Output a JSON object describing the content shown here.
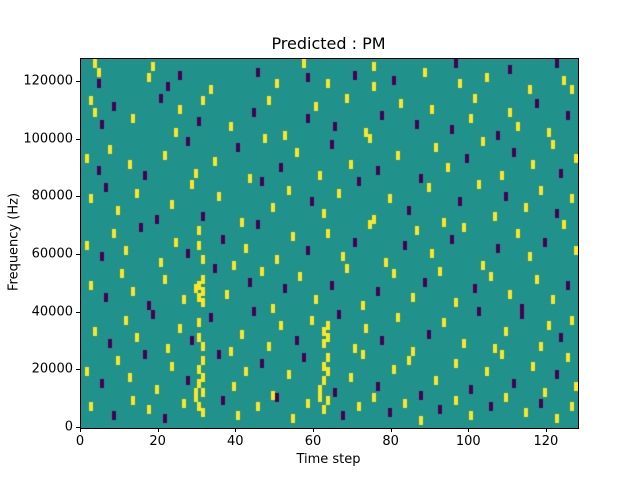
{
  "figure": {
    "background": "#ffffff"
  },
  "chart_data": {
    "type": "heatmap",
    "title": "Predicted : PM",
    "xlabel": "Time step",
    "ylabel": "Frequency (Hz)",
    "xlim": [
      0,
      128
    ],
    "ylim": [
      0,
      128000
    ],
    "xticks": [
      0,
      20,
      40,
      60,
      80,
      100,
      120
    ],
    "yticks": [
      0,
      20000,
      40000,
      60000,
      80000,
      100000,
      120000
    ],
    "grid": false,
    "legend": "none",
    "colors": {
      "low": "#440154",
      "mid": "#21918c",
      "high": "#fde725"
    },
    "value_meaning": {
      "low": 0,
      "mid": "background",
      "high": 1
    },
    "cell_size": {
      "time_steps": 1,
      "freq_hz": 3000
    },
    "cells_format": "[time_step, frequency_kHz, value(1=yellow-high, 0=purple-low)]",
    "cells": [
      [
        3,
        125,
        1
      ],
      [
        4,
        122,
        1
      ],
      [
        4,
        118,
        0
      ],
      [
        17,
        120,
        1
      ],
      [
        18,
        124,
        1
      ],
      [
        22,
        117,
        0
      ],
      [
        25,
        121,
        0
      ],
      [
        33,
        116,
        1
      ],
      [
        45,
        122,
        0
      ],
      [
        50,
        118,
        1
      ],
      [
        57,
        125,
        1
      ],
      [
        58,
        120,
        0
      ],
      [
        63,
        118,
        1
      ],
      [
        70,
        121,
        0
      ],
      [
        75,
        124,
        1
      ],
      [
        75,
        117,
        1
      ],
      [
        80,
        119,
        0
      ],
      [
        88,
        122,
        1
      ],
      [
        96,
        125,
        0
      ],
      [
        97,
        118,
        1
      ],
      [
        104,
        120,
        1
      ],
      [
        110,
        123,
        0
      ],
      [
        115,
        116,
        1
      ],
      [
        122,
        125,
        0
      ],
      [
        124,
        119,
        1
      ],
      [
        126,
        116,
        1
      ],
      [
        2,
        112,
        1
      ],
      [
        3,
        108,
        1
      ],
      [
        5,
        104,
        0
      ],
      [
        8,
        110,
        0
      ],
      [
        13,
        106,
        1
      ],
      [
        20,
        113,
        0
      ],
      [
        24,
        101,
        1
      ],
      [
        25,
        109,
        1
      ],
      [
        30,
        105,
        0
      ],
      [
        31,
        112,
        1
      ],
      [
        38,
        103,
        1
      ],
      [
        44,
        108,
        0
      ],
      [
        48,
        112,
        1
      ],
      [
        52,
        100,
        1
      ],
      [
        58,
        106,
        0
      ],
      [
        60,
        110,
        1
      ],
      [
        65,
        103,
        0
      ],
      [
        68,
        113,
        1
      ],
      [
        73,
        101,
        1
      ],
      [
        77,
        107,
        0
      ],
      [
        82,
        111,
        1
      ],
      [
        86,
        104,
        0
      ],
      [
        90,
        109,
        1
      ],
      [
        95,
        102,
        0
      ],
      [
        100,
        106,
        1
      ],
      [
        101,
        113,
        1
      ],
      [
        107,
        100,
        0
      ],
      [
        110,
        108,
        1
      ],
      [
        112,
        103,
        1
      ],
      [
        117,
        111,
        0
      ],
      [
        120,
        101,
        1
      ],
      [
        125,
        107,
        0
      ],
      [
        1,
        92,
        1
      ],
      [
        4,
        88,
        0
      ],
      [
        7,
        95,
        1
      ],
      [
        12,
        90,
        1
      ],
      [
        16,
        86,
        0
      ],
      [
        21,
        93,
        1
      ],
      [
        27,
        98,
        0
      ],
      [
        29,
        87,
        1
      ],
      [
        34,
        91,
        1
      ],
      [
        40,
        96,
        0
      ],
      [
        43,
        85,
        1
      ],
      [
        47,
        99,
        1
      ],
      [
        51,
        89,
        0
      ],
      [
        55,
        94,
        1
      ],
      [
        61,
        86,
        1
      ],
      [
        64,
        97,
        0
      ],
      [
        69,
        90,
        1
      ],
      [
        74,
        99,
        1
      ],
      [
        76,
        88,
        0
      ],
      [
        81,
        93,
        1
      ],
      [
        87,
        85,
        0
      ],
      [
        91,
        96,
        1
      ],
      [
        94,
        89,
        1
      ],
      [
        99,
        92,
        0
      ],
      [
        103,
        98,
        1
      ],
      [
        108,
        86,
        1
      ],
      [
        111,
        94,
        0
      ],
      [
        116,
        90,
        1
      ],
      [
        121,
        97,
        1
      ],
      [
        123,
        87,
        0
      ],
      [
        127,
        92,
        1
      ],
      [
        2,
        78,
        1
      ],
      [
        6,
        82,
        0
      ],
      [
        9,
        74,
        1
      ],
      [
        14,
        80,
        1
      ],
      [
        19,
        71,
        0
      ],
      [
        23,
        76,
        1
      ],
      [
        28,
        83,
        1
      ],
      [
        31,
        72,
        0
      ],
      [
        35,
        79,
        1
      ],
      [
        41,
        70,
        1
      ],
      [
        46,
        84,
        0
      ],
      [
        49,
        75,
        1
      ],
      [
        53,
        81,
        1
      ],
      [
        59,
        77,
        0
      ],
      [
        62,
        73,
        1
      ],
      [
        66,
        80,
        1
      ],
      [
        71,
        84,
        0
      ],
      [
        75,
        71,
        1
      ],
      [
        79,
        78,
        1
      ],
      [
        84,
        74,
        0
      ],
      [
        89,
        82,
        1
      ],
      [
        93,
        70,
        1
      ],
      [
        97,
        77,
        0
      ],
      [
        102,
        83,
        1
      ],
      [
        106,
        72,
        1
      ],
      [
        109,
        79,
        0
      ],
      [
        114,
        75,
        1
      ],
      [
        118,
        81,
        1
      ],
      [
        122,
        73,
        0
      ],
      [
        126,
        78,
        1
      ],
      [
        1,
        62,
        1
      ],
      [
        5,
        58,
        0
      ],
      [
        8,
        66,
        1
      ],
      [
        11,
        60,
        1
      ],
      [
        15,
        68,
        0
      ],
      [
        20,
        56,
        1
      ],
      [
        24,
        63,
        1
      ],
      [
        27,
        59,
        0
      ],
      [
        30,
        67,
        1
      ],
      [
        30,
        62,
        1
      ],
      [
        31,
        57,
        1
      ],
      [
        36,
        64,
        0
      ],
      [
        39,
        55,
        1
      ],
      [
        42,
        61,
        1
      ],
      [
        45,
        69,
        0
      ],
      [
        50,
        57,
        1
      ],
      [
        54,
        65,
        1
      ],
      [
        58,
        60,
        0
      ],
      [
        63,
        66,
        1
      ],
      [
        67,
        58,
        1
      ],
      [
        70,
        63,
        0
      ],
      [
        74,
        69,
        1
      ],
      [
        78,
        56,
        1
      ],
      [
        83,
        62,
        0
      ],
      [
        86,
        67,
        1
      ],
      [
        90,
        59,
        1
      ],
      [
        95,
        64,
        0
      ],
      [
        98,
        68,
        1
      ],
      [
        103,
        55,
        1
      ],
      [
        107,
        61,
        0
      ],
      [
        112,
        66,
        1
      ],
      [
        115,
        58,
        1
      ],
      [
        119,
        63,
        0
      ],
      [
        124,
        69,
        1
      ],
      [
        127,
        60,
        1
      ],
      [
        2,
        48,
        1
      ],
      [
        6,
        44,
        0
      ],
      [
        10,
        52,
        1
      ],
      [
        13,
        46,
        1
      ],
      [
        17,
        41,
        0
      ],
      [
        21,
        50,
        1
      ],
      [
        26,
        43,
        1
      ],
      [
        29,
        47,
        1
      ],
      [
        30,
        44,
        1
      ],
      [
        30,
        48,
        1
      ],
      [
        31,
        42,
        1
      ],
      [
        31,
        46,
        1
      ],
      [
        31,
        50,
        1
      ],
      [
        34,
        54,
        0
      ],
      [
        37,
        45,
        1
      ],
      [
        43,
        49,
        0
      ],
      [
        46,
        53,
        1
      ],
      [
        49,
        40,
        1
      ],
      [
        52,
        47,
        0
      ],
      [
        56,
        51,
        1
      ],
      [
        60,
        43,
        1
      ],
      [
        64,
        48,
        0
      ],
      [
        68,
        54,
        1
      ],
      [
        72,
        41,
        1
      ],
      [
        76,
        46,
        0
      ],
      [
        80,
        52,
        1
      ],
      [
        85,
        44,
        1
      ],
      [
        88,
        49,
        0
      ],
      [
        92,
        53,
        1
      ],
      [
        96,
        42,
        1
      ],
      [
        101,
        47,
        0
      ],
      [
        105,
        51,
        1
      ],
      [
        110,
        45,
        1
      ],
      [
        113,
        40,
        0
      ],
      [
        117,
        50,
        1
      ],
      [
        121,
        43,
        1
      ],
      [
        125,
        48,
        0
      ],
      [
        3,
        32,
        1
      ],
      [
        7,
        28,
        0
      ],
      [
        11,
        36,
        1
      ],
      [
        14,
        30,
        1
      ],
      [
        18,
        38,
        0
      ],
      [
        22,
        26,
        1
      ],
      [
        25,
        33,
        1
      ],
      [
        28,
        29,
        0
      ],
      [
        30,
        35,
        1
      ],
      [
        30,
        30,
        1
      ],
      [
        31,
        27,
        1
      ],
      [
        33,
        37,
        0
      ],
      [
        38,
        25,
        1
      ],
      [
        41,
        31,
        1
      ],
      [
        44,
        39,
        0
      ],
      [
        48,
        27,
        1
      ],
      [
        51,
        34,
        1
      ],
      [
        55,
        29,
        0
      ],
      [
        59,
        36,
        1
      ],
      [
        62,
        32,
        1
      ],
      [
        62,
        28,
        1
      ],
      [
        63,
        34,
        1
      ],
      [
        63,
        30,
        1
      ],
      [
        66,
        38,
        0
      ],
      [
        70,
        26,
        1
      ],
      [
        73,
        33,
        1
      ],
      [
        77,
        29,
        0
      ],
      [
        81,
        37,
        1
      ],
      [
        85,
        25,
        1
      ],
      [
        89,
        31,
        0
      ],
      [
        93,
        35,
        1
      ],
      [
        98,
        28,
        1
      ],
      [
        102,
        39,
        0
      ],
      [
        106,
        26,
        1
      ],
      [
        109,
        32,
        1
      ],
      [
        113,
        38,
        0
      ],
      [
        118,
        27,
        1
      ],
      [
        120,
        34,
        1
      ],
      [
        123,
        30,
        0
      ],
      [
        126,
        36,
        1
      ],
      [
        1,
        18,
        1
      ],
      [
        5,
        14,
        0
      ],
      [
        9,
        22,
        1
      ],
      [
        12,
        16,
        1
      ],
      [
        16,
        24,
        0
      ],
      [
        19,
        12,
        1
      ],
      [
        23,
        20,
        1
      ],
      [
        27,
        15,
        0
      ],
      [
        29,
        11,
        1
      ],
      [
        30,
        19,
        1
      ],
      [
        30,
        14,
        1
      ],
      [
        31,
        22,
        1
      ],
      [
        31,
        16,
        1
      ],
      [
        31,
        11,
        1
      ],
      [
        35,
        24,
        0
      ],
      [
        39,
        13,
        1
      ],
      [
        42,
        18,
        1
      ],
      [
        46,
        21,
        0
      ],
      [
        49,
        10,
        1
      ],
      [
        53,
        17,
        1
      ],
      [
        57,
        23,
        0
      ],
      [
        61,
        12,
        1
      ],
      [
        62,
        20,
        1
      ],
      [
        62,
        15,
        1
      ],
      [
        63,
        23,
        1
      ],
      [
        63,
        18,
        1
      ],
      [
        65,
        11,
        0
      ],
      [
        69,
        16,
        1
      ],
      [
        72,
        24,
        1
      ],
      [
        76,
        13,
        0
      ],
      [
        80,
        19,
        1
      ],
      [
        84,
        22,
        1
      ],
      [
        87,
        10,
        0
      ],
      [
        91,
        15,
        1
      ],
      [
        96,
        21,
        1
      ],
      [
        100,
        12,
        0
      ],
      [
        104,
        18,
        1
      ],
      [
        108,
        24,
        1
      ],
      [
        111,
        14,
        0
      ],
      [
        116,
        20,
        1
      ],
      [
        119,
        11,
        1
      ],
      [
        122,
        17,
        0
      ],
      [
        125,
        23,
        1
      ],
      [
        127,
        13,
        1
      ],
      [
        2,
        6,
        1
      ],
      [
        8,
        3,
        0
      ],
      [
        13,
        8,
        1
      ],
      [
        17,
        5,
        1
      ],
      [
        21,
        2,
        0
      ],
      [
        26,
        7,
        1
      ],
      [
        29,
        9,
        1
      ],
      [
        30,
        6,
        1
      ],
      [
        31,
        4,
        1
      ],
      [
        36,
        8,
        0
      ],
      [
        40,
        3,
        1
      ],
      [
        45,
        6,
        1
      ],
      [
        50,
        9,
        0
      ],
      [
        54,
        2,
        1
      ],
      [
        58,
        7,
        1
      ],
      [
        61,
        9,
        1
      ],
      [
        62,
        5,
        1
      ],
      [
        63,
        8,
        1
      ],
      [
        67,
        3,
        0
      ],
      [
        71,
        6,
        1
      ],
      [
        75,
        9,
        1
      ],
      [
        79,
        4,
        0
      ],
      [
        83,
        7,
        1
      ],
      [
        87,
        1,
        1
      ],
      [
        92,
        5,
        0
      ],
      [
        96,
        8,
        1
      ],
      [
        100,
        3,
        1
      ],
      [
        105,
        6,
        0
      ],
      [
        109,
        9,
        1
      ],
      [
        114,
        4,
        1
      ],
      [
        118,
        7,
        0
      ],
      [
        122,
        2,
        1
      ],
      [
        126,
        6,
        1
      ]
    ]
  }
}
